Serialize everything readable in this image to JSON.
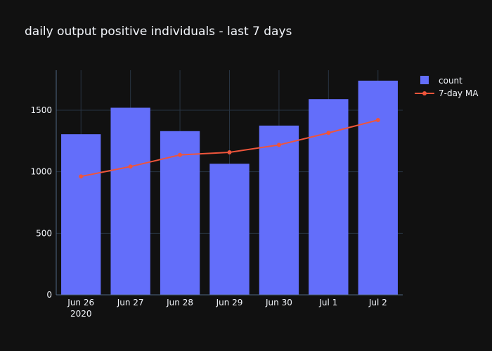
{
  "chart_data": {
    "type": "bar",
    "title": "daily output positive individuals - last 7 days",
    "categories": [
      "Jun 26",
      "Jun 27",
      "Jun 28",
      "Jun 29",
      "Jun 30",
      "Jul 1",
      "Jul 2"
    ],
    "first_tick_sublabel": "2020",
    "series": [
      {
        "name": "count",
        "type": "bar",
        "color": "#636efa",
        "values": [
          1305,
          1520,
          1330,
          1065,
          1375,
          1590,
          1740
        ]
      },
      {
        "name": "7-day MA",
        "type": "line",
        "color": "#ef553b",
        "values": [
          962,
          1042,
          1137,
          1158,
          1218,
          1316,
          1420
        ]
      }
    ],
    "yticks": [
      0,
      500,
      1000,
      1500
    ],
    "ylim": [
      0,
      1825
    ],
    "grid": true,
    "legend_position": "top-right",
    "xlabel": "",
    "ylabel": ""
  },
  "colors": {
    "background": "#111111",
    "grid": "#283442",
    "text": "#f2f5fa"
  }
}
